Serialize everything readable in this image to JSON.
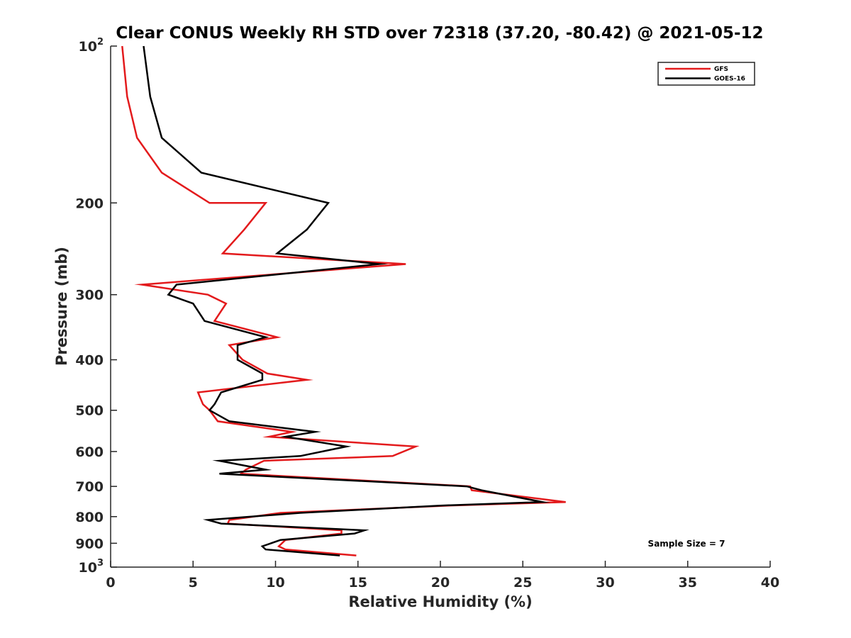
{
  "chart_data": {
    "type": "line",
    "title": "Clear CONUS Weekly RH STD over 72318 (37.20, -80.42) @ 2021-05-12",
    "xlabel": "Relative Humidity (%)",
    "ylabel": "Pressure (mb)",
    "xlim": [
      0,
      40
    ],
    "ylim": [
      1000,
      100
    ],
    "yscale": "log",
    "y_reversed": true,
    "xticks": [
      "0",
      "5",
      "10",
      "15",
      "20",
      "25",
      "30",
      "35",
      "40"
    ],
    "yticks": [
      {
        "value": 100,
        "base": "10",
        "exp": "2"
      },
      {
        "value": 200,
        "label": "200"
      },
      {
        "value": 300,
        "label": "300"
      },
      {
        "value": 400,
        "label": "400"
      },
      {
        "value": 500,
        "label": "500"
      },
      {
        "value": 600,
        "label": "600"
      },
      {
        "value": 700,
        "label": "700"
      },
      {
        "value": 800,
        "label": "800"
      },
      {
        "value": 900,
        "label": "900"
      },
      {
        "value": 1000,
        "base": "10",
        "exp": "3"
      }
    ],
    "grid": false,
    "legend": "top-right",
    "series": [
      {
        "name": "GFS",
        "color": "#e31a1c",
        "points": [
          [
            0.7,
            100
          ],
          [
            1.0,
            125
          ],
          [
            1.6,
            150
          ],
          [
            3.1,
            175
          ],
          [
            6.0,
            200
          ],
          [
            9.4,
            200
          ],
          [
            8.1,
            225
          ],
          [
            6.8,
            250
          ],
          [
            17.9,
            262
          ],
          [
            1.9,
            287
          ],
          [
            5.9,
            300
          ],
          [
            7.0,
            312
          ],
          [
            6.3,
            337
          ],
          [
            10.1,
            362
          ],
          [
            7.2,
            375
          ],
          [
            8.0,
            400
          ],
          [
            9.5,
            425
          ],
          [
            11.9,
            437
          ],
          [
            5.3,
            462
          ],
          [
            5.6,
            487
          ],
          [
            6.0,
            500
          ],
          [
            6.5,
            525
          ],
          [
            11.0,
            550
          ],
          [
            9.6,
            562
          ],
          [
            18.5,
            587
          ],
          [
            17.1,
            612
          ],
          [
            9.3,
            625
          ],
          [
            8.2,
            650
          ],
          [
            7.9,
            662
          ],
          [
            21.8,
            700
          ],
          [
            21.9,
            712
          ],
          [
            27.6,
            750
          ],
          [
            20.5,
            762
          ],
          [
            10.3,
            787
          ],
          [
            7.2,
            812
          ],
          [
            7.1,
            825
          ],
          [
            14.0,
            850
          ],
          [
            14.0,
            862
          ],
          [
            10.6,
            887
          ],
          [
            10.2,
            912
          ],
          [
            10.6,
            925
          ],
          [
            14.9,
            950
          ]
        ]
      },
      {
        "name": "GOES-16",
        "color": "#000000",
        "points": [
          [
            2.0,
            100
          ],
          [
            2.4,
            125
          ],
          [
            3.1,
            150
          ],
          [
            5.5,
            175
          ],
          [
            13.2,
            200
          ],
          [
            11.9,
            225
          ],
          [
            10.1,
            250
          ],
          [
            16.3,
            262
          ],
          [
            4.0,
            287
          ],
          [
            3.5,
            300
          ],
          [
            5.0,
            312
          ],
          [
            5.7,
            337
          ],
          [
            9.4,
            362
          ],
          [
            7.7,
            375
          ],
          [
            7.7,
            400
          ],
          [
            9.2,
            425
          ],
          [
            9.2,
            437
          ],
          [
            6.7,
            462
          ],
          [
            6.3,
            487
          ],
          [
            6.0,
            500
          ],
          [
            7.2,
            525
          ],
          [
            12.4,
            550
          ],
          [
            10.6,
            562
          ],
          [
            14.3,
            587
          ],
          [
            11.5,
            612
          ],
          [
            6.6,
            625
          ],
          [
            9.4,
            650
          ],
          [
            6.6,
            662
          ],
          [
            21.6,
            700
          ],
          [
            22.5,
            712
          ],
          [
            26.2,
            750
          ],
          [
            20.0,
            762
          ],
          [
            11.5,
            787
          ],
          [
            5.9,
            812
          ],
          [
            6.7,
            825
          ],
          [
            15.4,
            850
          ],
          [
            14.8,
            862
          ],
          [
            10.3,
            887
          ],
          [
            9.2,
            912
          ],
          [
            9.4,
            925
          ],
          [
            13.9,
            950
          ]
        ]
      }
    ],
    "annotation": "Sample Size = 7"
  }
}
